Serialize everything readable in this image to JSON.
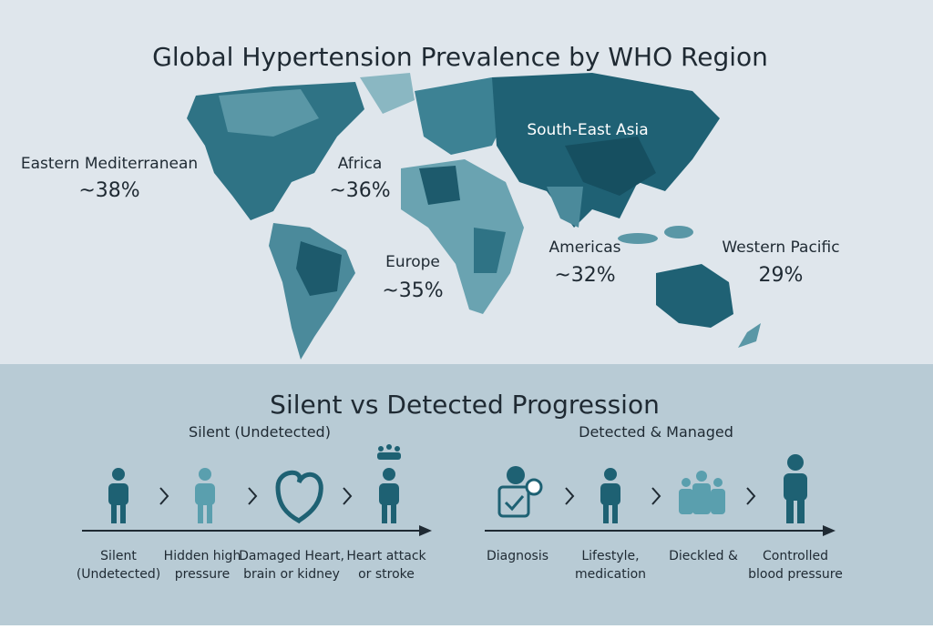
{
  "title": "Global Hypertension Prevalence by WHO Region",
  "regions": [
    {
      "name": "Eastern Mediterranean",
      "value": "~38%"
    },
    {
      "name": "Africa",
      "value": "~36%"
    },
    {
      "name": "South-East Asia"
    },
    {
      "name": "Europe",
      "value": "~35%"
    },
    {
      "name": "Americas",
      "value": "~32%"
    },
    {
      "name": "Western Pacific",
      "value": "29%"
    }
  ],
  "progression": {
    "title": "Silent vs Detected Progression",
    "tracks": [
      {
        "label": "Silent (Undetected)",
        "steps": [
          {
            "lines": [
              "Silent",
              "(Undetected)"
            ]
          },
          {
            "lines": [
              "Hidden high",
              "pressure"
            ]
          },
          {
            "lines": [
              "Damaged Heart,",
              "brain or kidney"
            ]
          },
          {
            "lines": [
              "Heart attack",
              "or stroke"
            ]
          }
        ]
      },
      {
        "label": "Detected & Managed",
        "steps": [
          {
            "lines": [
              "Diagnosis"
            ]
          },
          {
            "lines": [
              "Lifestyle,",
              "medication"
            ]
          },
          {
            "lines": [
              "Dieckled &"
            ]
          },
          {
            "lines": [
              "Controlled",
              "blood pressure"
            ]
          }
        ]
      }
    ]
  }
}
